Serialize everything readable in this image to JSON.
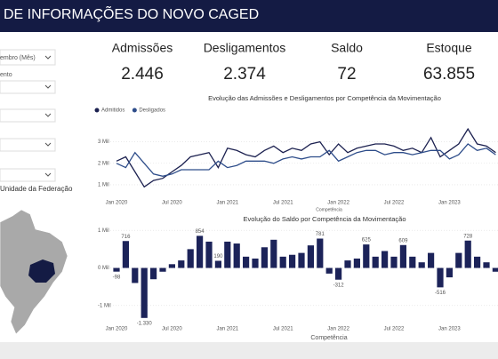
{
  "header": {
    "title": "DE INFORMAÇÕES DO NOVO CAGED"
  },
  "filters": [
    {
      "label": "embro (Mês)"
    },
    {
      "label": "ento"
    }
  ],
  "map_title": "Unidade da Federação",
  "kpis": [
    {
      "label": "Admissões",
      "value": "2.446"
    },
    {
      "label": "Desligamentos",
      "value": "2.374"
    },
    {
      "label": "Saldo",
      "value": "72"
    },
    {
      "label": "Estoque",
      "value": "63.855"
    }
  ],
  "chart_data": [
    {
      "type": "line",
      "title": "Evolução das Admissões e Desligamentos por Competência da Movimentação",
      "x_label": "Competência",
      "categories": [
        "Jan 2020",
        null,
        null,
        null,
        null,
        null,
        "Jul 2020",
        null,
        null,
        null,
        null,
        null,
        "Jan 2021",
        null,
        null,
        null,
        null,
        null,
        "Jul 2021",
        null,
        null,
        null,
        null,
        null,
        "Jan 2022",
        null,
        null,
        null,
        null,
        null,
        "Jul 2022",
        null,
        null,
        null,
        null,
        null,
        "Jan 2023",
        null,
        null,
        null,
        null,
        null
      ],
      "series": [
        {
          "name": "Admitidos",
          "color": "#1c2150",
          "values": [
            2100,
            2300,
            1600,
            900,
            1200,
            1300,
            1600,
            1900,
            2300,
            2400,
            2500,
            1800,
            2700,
            2600,
            2400,
            2300,
            2600,
            2800,
            2500,
            2700,
            2600,
            2900,
            3000,
            2400,
            2900,
            2500,
            2700,
            2800,
            2900,
            2900,
            2800,
            2600,
            2700,
            2500,
            3200,
            2300,
            2600,
            2900,
            3600,
            2900,
            2800,
            2500
          ]
        },
        {
          "name": "Desligados",
          "color": "#2e4d8a",
          "values": [
            2000,
            1800,
            2500,
            2000,
            1500,
            1400,
            1500,
            1700,
            1700,
            1700,
            1700,
            2100,
            1800,
            1900,
            2100,
            2100,
            2100,
            2000,
            2200,
            2300,
            2200,
            2300,
            2300,
            2600,
            2100,
            2300,
            2500,
            2600,
            2600,
            2400,
            2500,
            2500,
            2400,
            2500,
            2600,
            2600,
            2200,
            2400,
            2900,
            2600,
            2700,
            2400
          ]
        }
      ],
      "ylim": [
        500,
        4100
      ],
      "yticks": [
        {
          "value": 1000,
          "label": "1 Mil"
        },
        {
          "value": 2000,
          "label": "2 Mil"
        },
        {
          "value": 3000,
          "label": "3 Mil"
        }
      ],
      "grid": true,
      "legend": "top-left"
    },
    {
      "type": "bar",
      "title": "Evolução do Saldo por Competência da Movimentação",
      "x_label": "Competência",
      "color": "#1c2359",
      "categories": [
        "Jan 2020",
        null,
        null,
        null,
        null,
        null,
        "Jul 2020",
        null,
        null,
        null,
        null,
        null,
        "Jan 2021",
        null,
        null,
        null,
        null,
        null,
        "Jul 2021",
        null,
        null,
        null,
        null,
        null,
        "Jan 2022",
        null,
        null,
        null,
        null,
        null,
        "Jul 2022",
        null,
        null,
        null,
        null,
        null,
        "Jan 2023",
        null,
        null,
        null,
        null,
        null
      ],
      "values": [
        -98,
        716,
        -400,
        -1330,
        -300,
        -100,
        100,
        200,
        500,
        854,
        700,
        190,
        700,
        650,
        300,
        250,
        550,
        750,
        300,
        350,
        400,
        600,
        781,
        -150,
        -312,
        200,
        250,
        625,
        300,
        450,
        300,
        609,
        300,
        150,
        400,
        -516,
        -250,
        400,
        728,
        300,
        150,
        -100
      ],
      "value_labels": [
        "-98",
        "716",
        null,
        "-1.330",
        null,
        null,
        null,
        null,
        null,
        "854",
        null,
        "190",
        null,
        null,
        null,
        null,
        null,
        null,
        null,
        null,
        null,
        null,
        "781",
        null,
        "-312",
        null,
        null,
        "625",
        null,
        null,
        null,
        "609",
        null,
        null,
        null,
        "-516",
        null,
        null,
        "728",
        null,
        null,
        null
      ],
      "ylim": [
        -1500,
        1100
      ],
      "yticks": [
        {
          "value": -1000,
          "label": "-1 Mil"
        },
        {
          "value": 0,
          "label": "0 Mil"
        },
        {
          "value": 1000,
          "label": "1 Mil"
        }
      ],
      "grid": true
    }
  ]
}
